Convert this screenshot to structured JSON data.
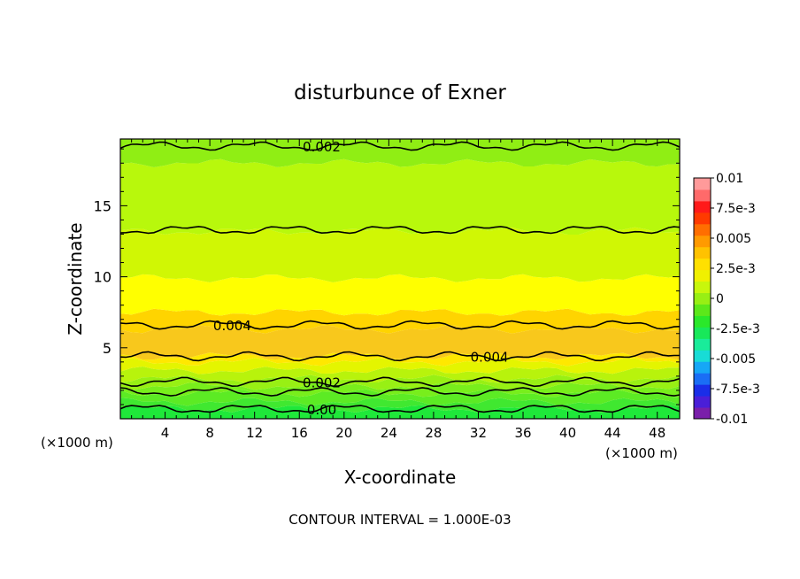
{
  "chart_data": {
    "type": "contour",
    "title": "disturbunce of Exner",
    "xlabel": "X-coordinate",
    "ylabel": "Z-coordinate",
    "x_unit": "(×1000 m)",
    "footer": "CONTOUR INTERVAL = 1.000E-03",
    "xlim": [
      0,
      50
    ],
    "ylim": [
      0,
      19.7
    ],
    "x_ticks": [
      4,
      8,
      12,
      16,
      20,
      24,
      28,
      32,
      36,
      40,
      44,
      48
    ],
    "y_ticks": [
      5,
      10,
      15
    ],
    "colorbar": {
      "levels": [
        -0.01,
        -0.0075,
        -0.005,
        -0.0025,
        0,
        0.0025,
        0.005,
        0.0075,
        0.01
      ],
      "labels": [
        "0.01",
        "7.5e-3",
        "0.005",
        "2.5e-3",
        "0",
        "-2.5e-3",
        "-0.005",
        "-7.5e-3",
        "-0.01"
      ],
      "colors": [
        "#7a1faa",
        "#4a1fd8",
        "#1a2ee8",
        "#1a6ef5",
        "#16a7f6",
        "#18dcd6",
        "#19ec9a",
        "#18e85a",
        "#2ae82a",
        "#5ce81a",
        "#98ef14",
        "#c8f70c",
        "#f0f000",
        "#ffe000",
        "#ffc200",
        "#ff9a00",
        "#ff6e00",
        "#ff3a00",
        "#ff1a1a",
        "#ff6a6a",
        "#ff9a9a"
      ]
    },
    "bands": [
      {
        "z_top": 0.7,
        "value": 0.0005,
        "color": "#1fe83a"
      },
      {
        "z_top": 1.2,
        "value": 0.0008,
        "color": "#40e830"
      },
      {
        "z_top": 1.8,
        "value": 0.0012,
        "color": "#5ceb24"
      },
      {
        "z_top": 2.3,
        "value": 0.0016,
        "color": "#78ee1c"
      },
      {
        "z_top": 2.8,
        "value": 0.0022,
        "color": "#98f014"
      },
      {
        "z_top": 3.4,
        "value": 0.0028,
        "color": "#b8f30c"
      },
      {
        "z_top": 4.0,
        "value": 0.0034,
        "color": "#e4f500"
      },
      {
        "z_top": 4.4,
        "value": 0.0038,
        "color": "#ffe800"
      },
      {
        "z_top": 6.3,
        "value": 0.0042,
        "color": "#f8c81c"
      },
      {
        "z_top": 7.5,
        "value": 0.004,
        "color": "#ffd400"
      },
      {
        "z_top": 9.9,
        "value": 0.0036,
        "color": "#ffff00"
      },
      {
        "z_top": 13.2,
        "value": 0.003,
        "color": "#d0f704"
      },
      {
        "z_top": 18.0,
        "value": 0.0024,
        "color": "#b8f80c"
      },
      {
        "z_top": 19.7,
        "value": 0.002,
        "color": "#90ee14"
      }
    ],
    "contour_lines": [
      {
        "z": 0.7,
        "label": "0.00"
      },
      {
        "z": 1.9,
        "label": ""
      },
      {
        "z": 2.6,
        "label": "0.002"
      },
      {
        "z": 4.4,
        "label": "0.004"
      },
      {
        "z": 6.6,
        "label": "0.004"
      },
      {
        "z": 13.3,
        "label": ""
      },
      {
        "z": 19.2,
        "label": "0.002"
      }
    ]
  }
}
